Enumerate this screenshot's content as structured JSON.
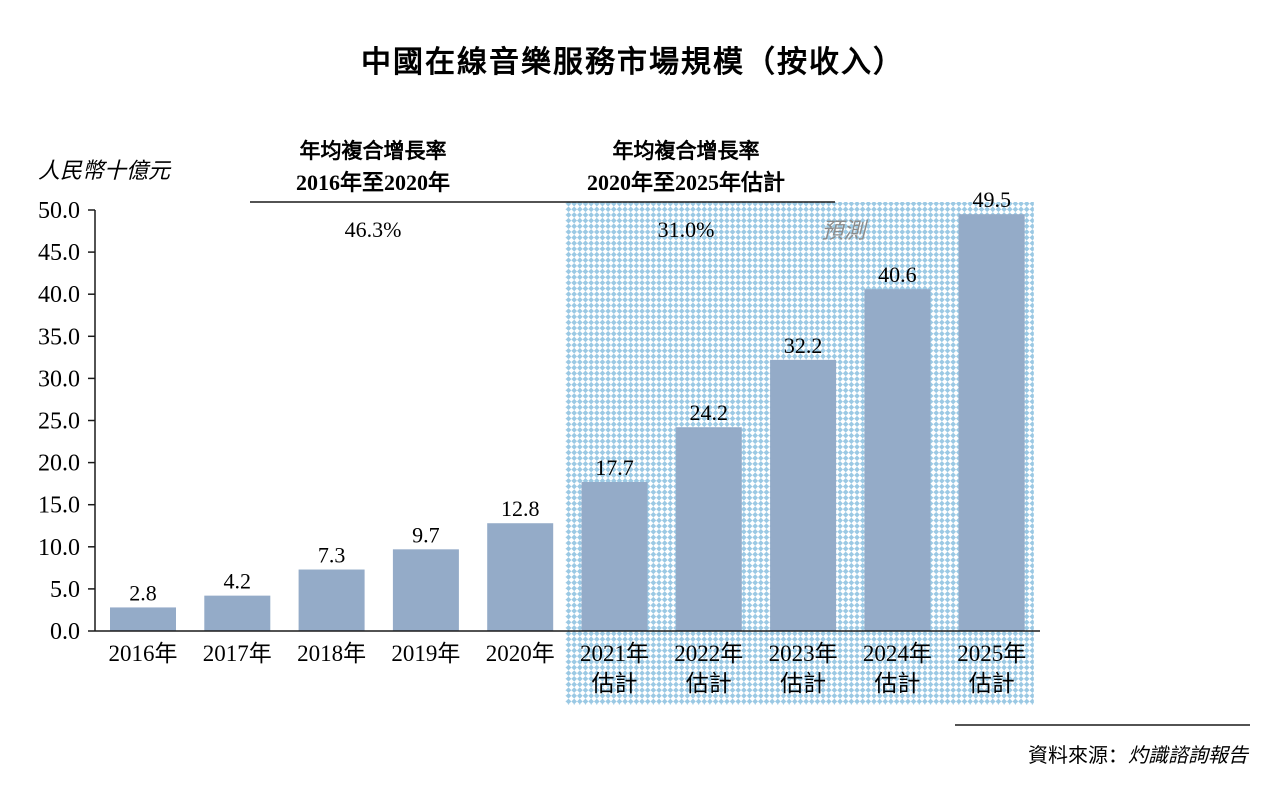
{
  "chart_data": {
    "type": "bar",
    "title": "中國在線音樂服務市場規模（按收入）",
    "ylabel": "人民幣十億元",
    "ylim": [
      0,
      50
    ],
    "yticks": [
      "0.0",
      "5.0",
      "10.0",
      "15.0",
      "20.0",
      "25.0",
      "30.0",
      "35.0",
      "40.0",
      "45.0",
      "50.0"
    ],
    "categories": [
      "2016年",
      "2017年",
      "2018年",
      "2019年",
      "2020年",
      "2021年 估計",
      "2022年 估計",
      "2023年 估計",
      "2024年 估計",
      "2025年 估計"
    ],
    "category_lines": [
      [
        "2016年"
      ],
      [
        "2017年"
      ],
      [
        "2018年"
      ],
      [
        "2019年"
      ],
      [
        "2020年"
      ],
      [
        "2021年",
        "估計"
      ],
      [
        "2022年",
        "估計"
      ],
      [
        "2023年",
        "估計"
      ],
      [
        "2024年",
        "估計"
      ],
      [
        "2025年",
        "估計"
      ]
    ],
    "values": [
      2.8,
      4.2,
      7.3,
      9.7,
      12.8,
      17.7,
      24.2,
      32.2,
      40.6,
      49.5
    ],
    "value_labels": [
      "2.8",
      "4.2",
      "7.3",
      "9.7",
      "12.8",
      "17.7",
      "24.2",
      "32.2",
      "40.6",
      "49.5"
    ],
    "forecast_label": "預測",
    "forecast_start_index": 5,
    "bar_color": "#94abc8",
    "forecast_pattern_color": "#9bc9e4",
    "cagr": [
      {
        "heading": "年均複合增長率",
        "period": "2016年至2020年",
        "value": "46.3%"
      },
      {
        "heading": "年均複合增長率",
        "period": "2020年至2025年估計",
        "value": "31.0%"
      }
    ],
    "source_prefix": "資料來源：",
    "source_name": "灼識諮詢報告"
  }
}
